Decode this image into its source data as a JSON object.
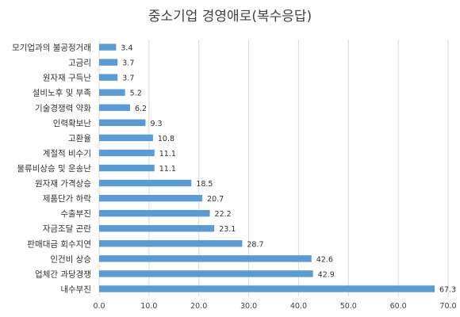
{
  "chart_data": {
    "type": "bar",
    "orientation": "horizontal",
    "title": "중소기업 경영애로(복수응답)",
    "categories": [
      "내수부진",
      "업체간 과당경쟁",
      "인건비 상승",
      "판매대금 회수지연",
      "자금조달 곤란",
      "수출부진",
      "제품단가 하락",
      "원자재 가격상승",
      "물류비상승 및 운송난",
      "계절적 비수기",
      "고환율",
      "인력확보난",
      "기술경쟁력 약화",
      "설비노후 및 부족",
      "원자재 구득난",
      "고금리",
      "모기업과의 불공정거래"
    ],
    "values": [
      67.3,
      42.9,
      42.6,
      28.7,
      23.1,
      22.2,
      20.7,
      18.5,
      11.1,
      11.1,
      10.8,
      9.3,
      6.2,
      5.2,
      3.7,
      3.7,
      3.4
    ],
    "value_labels": [
      "67.3",
      "42.9",
      "42.6",
      "28.7",
      "23.1",
      "22.2",
      "20.7",
      "18.5",
      "11.1",
      "11.1",
      "10.8",
      "9.3",
      "6.2",
      "5.2",
      "3.7",
      "3.7",
      "3.4"
    ],
    "xlim": [
      0,
      70
    ],
    "x_ticks": [
      "0.0",
      "10.0",
      "20.0",
      "30.0",
      "40.0",
      "50.0",
      "60.0",
      "70.0"
    ],
    "grid": true,
    "bar_color": "#5b9bd5",
    "grid_color": "#d9d9d9",
    "xlabel": "",
    "ylabel": ""
  }
}
